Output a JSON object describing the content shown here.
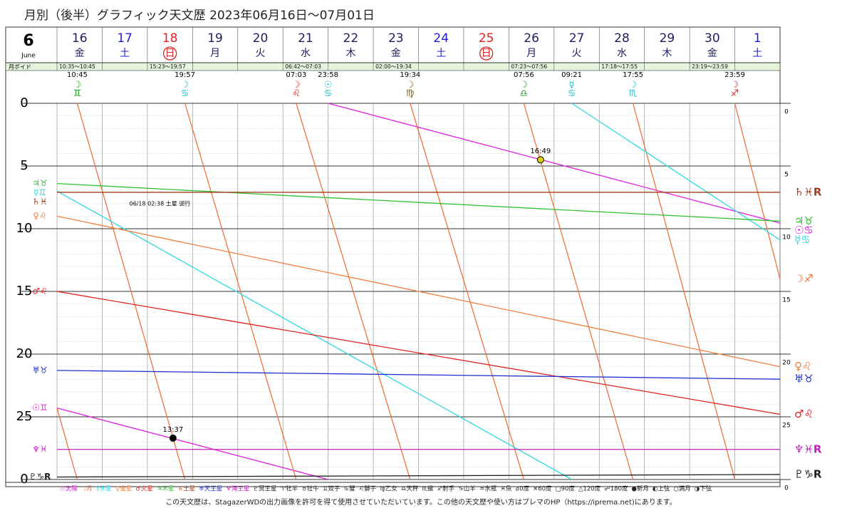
{
  "header": {
    "title": "月別（後半）グラフィック天文歴  2023年06月16日～07月01日",
    "month": "6",
    "month_name": "June",
    "void_label": "月ボイド",
    "days": [
      {
        "day": "16",
        "weekday": "金",
        "color": "#202060",
        "void": "10:35～10:45",
        "ingress": [
          {
            "x": 0.448,
            "time": "10:45",
            "glyph": "☽♊",
            "color": "#20a020"
          }
        ]
      },
      {
        "day": "17",
        "weekday": "土",
        "color": "#2020d0"
      },
      {
        "day": "18",
        "weekday": "日",
        "color": "#e02020",
        "circled": true,
        "void": "15:23～19:57",
        "ingress": [
          {
            "x": 2.831,
            "time": "19:57",
            "glyph": "☽♋",
            "color": "#20c0d0"
          }
        ]
      },
      {
        "day": "19",
        "weekday": "月",
        "color": "#202060"
      },
      {
        "day": "20",
        "weekday": "火",
        "color": "#202060"
      },
      {
        "day": "21",
        "weekday": "水",
        "color": "#202060",
        "void": "06:42～07:03",
        "ingress": [
          {
            "x": 5.294,
            "time": "07:03",
            "glyph": "☽♌",
            "color": "#e02020"
          },
          {
            "x": 5.999,
            "time": "23:58",
            "glyph": "☉♋",
            "color": "#20c0d0"
          }
        ]
      },
      {
        "day": "22",
        "weekday": "木",
        "color": "#202060"
      },
      {
        "day": "23",
        "weekday": "金",
        "color": "#202060",
        "void": "02:00～19:34",
        "ingress": [
          {
            "x": 7.815,
            "time": "19:34",
            "glyph": "☽♍",
            "color": "#806020"
          }
        ]
      },
      {
        "day": "24",
        "weekday": "土",
        "color": "#2020d0"
      },
      {
        "day": "25",
        "weekday": "日",
        "color": "#e02020",
        "circled": true
      },
      {
        "day": "26",
        "weekday": "月",
        "color": "#202060",
        "void": "07:23～07:56",
        "ingress": [
          {
            "x": 10.331,
            "time": "07:56",
            "glyph": "☽♎",
            "color": "#20a020"
          }
        ]
      },
      {
        "day": "27",
        "weekday": "火",
        "color": "#202060",
        "ingress": [
          {
            "x": 11.39,
            "time": "09:21",
            "glyph": "☿♋",
            "color": "#20c0d0"
          }
        ]
      },
      {
        "day": "28",
        "weekday": "水",
        "color": "#202060",
        "void": "17:18～17:55",
        "ingress": [
          {
            "x": 12.746,
            "time": "17:55",
            "glyph": "☽♏",
            "color": "#20c0d0"
          }
        ]
      },
      {
        "day": "29",
        "weekday": "木",
        "color": "#202060"
      },
      {
        "day": "30",
        "weekday": "金",
        "color": "#202060",
        "void": "23:19～23:59",
        "ingress": [
          {
            "x": 14.999,
            "time": "23:59",
            "glyph": "☽♐",
            "color": "#e02020"
          }
        ]
      },
      {
        "day": "1",
        "weekday": "土",
        "color": "#2020d0"
      }
    ]
  },
  "chart_data": {
    "type": "line",
    "xlim": [
      0,
      16
    ],
    "xticks": [
      0,
      1,
      2,
      3,
      4,
      5,
      6,
      7,
      8,
      9,
      10,
      11,
      12,
      13,
      14,
      15,
      16
    ],
    "ylim": [
      0,
      30
    ],
    "yticks": [
      0,
      5,
      10,
      15,
      20,
      25,
      {
        "value": 30,
        "label": "0"
      }
    ],
    "minor_grid_step": 1,
    "grid": true,
    "series": [
      {
        "name": "☉太陽",
        "color": "#e020e0",
        "left_label": "☉♊",
        "right_label": "☉♋",
        "x": [
          0,
          5.999,
          null,
          5.999,
          16
        ],
        "values": [
          24.3,
          30,
          null,
          0,
          9.55
        ]
      },
      {
        "name": "☽月",
        "color": "#f07040",
        "right_label": "☽♐",
        "x": [
          0,
          0.448,
          null,
          0.448,
          2.831,
          null,
          2.831,
          5.294,
          null,
          5.294,
          7.815,
          null,
          7.815,
          10.331,
          null,
          10.331,
          12.746,
          null,
          12.746,
          14.999,
          null,
          14.999,
          16
        ],
        "values": [
          24.3,
          30,
          null,
          0,
          30,
          null,
          0,
          30,
          null,
          0,
          30,
          null,
          0,
          30,
          null,
          0,
          30,
          null,
          0,
          30,
          null,
          0,
          14
        ]
      },
      {
        "name": "☿水星",
        "color": "#30d8e0",
        "left_label": "☿♊",
        "right_label": "☿♋",
        "x": [
          0,
          11.39,
          null,
          11.39,
          16
        ],
        "values": [
          7.0,
          30,
          null,
          0,
          10.9
        ]
      },
      {
        "name": "♀金星",
        "color": "#f08040",
        "left_label": "♀♌",
        "right_label": "♀♌",
        "x": [
          0,
          16
        ],
        "values": [
          9.0,
          21.0
        ]
      },
      {
        "name": "♂火星",
        "color": "#e02020",
        "left_label": "♂♌",
        "right_label": "♂♌",
        "x": [
          0,
          16
        ],
        "values": [
          15.0,
          24.8
        ]
      },
      {
        "name": "♃木星",
        "color": "#30c030",
        "left_label": "♃♉",
        "right_label": "♃♉",
        "x": [
          0,
          16
        ],
        "values": [
          6.4,
          9.4
        ]
      },
      {
        "name": "♄土星",
        "color": "#a04020",
        "left_label": "♄♓",
        "right_label": "♄♓R",
        "x": [
          0,
          16
        ],
        "values": [
          7.1,
          7.1
        ]
      },
      {
        "name": "♅天王星",
        "color": "#2030d0",
        "left_label": "♅♉",
        "right_label": "♅♉",
        "x": [
          0,
          16
        ],
        "values": [
          21.3,
          22.0
        ]
      },
      {
        "name": "♆海王星",
        "color": "#c020c0",
        "left_label": "♆♓",
        "right_label": "♆♓R",
        "x": [
          0,
          16
        ],
        "values": [
          27.6,
          27.6
        ]
      },
      {
        "name": "♇冥王星",
        "color": "#202020",
        "left_label": "♇♑R",
        "right_label": "♇♑R",
        "x": [
          0,
          16
        ],
        "values": [
          29.8,
          29.6
        ]
      }
    ],
    "events": [
      {
        "x": 2.567,
        "value": 26.7,
        "label": "13:37",
        "fill": "#000"
      },
      {
        "x": 10.7,
        "value": 4.5,
        "label": "16:49",
        "fill": "#e0d000"
      }
    ],
    "annotations": [
      {
        "x": 1.6,
        "value": 8.0,
        "text": "06/18 02:38 土星 逆行"
      }
    ],
    "legend_extra": [
      "♈牡羊",
      "♉牡牛",
      "♊双子",
      "♋蟹",
      "♌獅子",
      "♍乙女",
      "♎天秤",
      "♏蠍",
      "♐射手",
      "♑山羊",
      "♒水瓶",
      "♓魚",
      "☌0度",
      "✕60度",
      "□90度",
      "△120度",
      "☍180度",
      "●新月",
      "◐上弦",
      "○満月",
      "◑下弦"
    ]
  },
  "footer": "この天文歴は、StagazerWDの出力画像を許可を得て使用させていただいています。この他の天文歴や使い方はプレマのHP（https://iprema.net)にあります。"
}
